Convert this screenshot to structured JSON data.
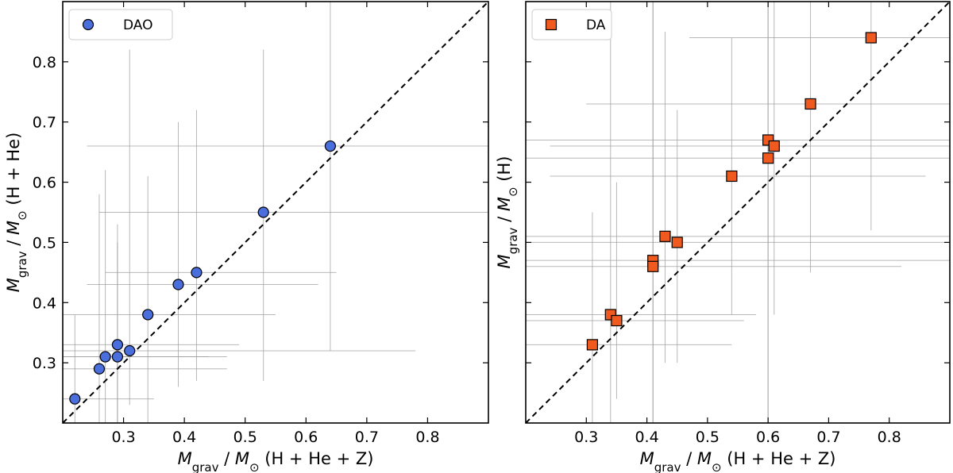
{
  "chart_data": [
    {
      "type": "scatter",
      "panel": "left",
      "xlabel": "M_grav / M_⊙ (H + He + Z)",
      "ylabel": "M_grav / M_⊙ (H + He)",
      "xlim": [
        0.2,
        0.9
      ],
      "ylim": [
        0.2,
        0.9
      ],
      "x_ticks": [
        0.3,
        0.4,
        0.5,
        0.6,
        0.7,
        0.8
      ],
      "y_ticks": [
        0.3,
        0.4,
        0.5,
        0.6,
        0.7,
        0.8
      ],
      "y_tick_labels_visible": true,
      "diagonal": "y = x (dashed)",
      "legend": {
        "label": "DAO",
        "position": "top-left"
      },
      "marker": "circle",
      "color": "#4a6fdc",
      "points": [
        {
          "x": 0.22,
          "y": 0.24,
          "xerr": [
            0.16,
            0.16
          ],
          "yerr": [
            0.16,
            0.16
          ]
        },
        {
          "x": 0.26,
          "y": 0.29,
          "xerr": [
            0.0,
            0.0
          ],
          "yerr": [
            0.0,
            0.29
          ]
        },
        {
          "x": 0.27,
          "y": 0.31,
          "xerr": [
            0.0,
            0.0
          ],
          "yerr": [
            0.0,
            0.31
          ]
        },
        {
          "x": 0.29,
          "y": 0.33,
          "xerr": [
            0.0,
            0.0
          ],
          "yerr": [
            0.0,
            0.2
          ]
        },
        {
          "x": 0.29,
          "y": 0.31,
          "xerr": [
            0.0,
            0.0
          ],
          "yerr": [
            0.0,
            0.22
          ]
        },
        {
          "x": 0.31,
          "y": 0.32,
          "xerr": [
            0.0,
            0.0
          ],
          "yerr": [
            0.0,
            0.5
          ]
        },
        {
          "x": 0.34,
          "y": 0.38,
          "xerr": [
            0.0,
            0.0
          ],
          "yerr": [
            0.0,
            0.23
          ]
        },
        {
          "x": 0.39,
          "y": 0.43,
          "xerr": [
            0.0,
            0.0
          ],
          "yerr": [
            0.0,
            0.27
          ]
        },
        {
          "x": 0.42,
          "y": 0.45,
          "xerr": [
            0.0,
            0.0
          ],
          "yerr": [
            0.0,
            0.27
          ]
        },
        {
          "x": 0.53,
          "y": 0.55,
          "xerr": [
            0.0,
            0.0
          ],
          "yerr": [
            0.0,
            0.0
          ]
        },
        {
          "x": 0.64,
          "y": 0.66,
          "xerr": [
            0.0,
            0.0
          ],
          "yerr": [
            0.0,
            0.0
          ]
        }
      ],
      "vlines": [
        {
          "x": 0.22,
          "y0": 0.2,
          "y1": 0.38
        },
        {
          "x": 0.26,
          "y0": 0.2,
          "y1": 0.58
        },
        {
          "x": 0.27,
          "y0": 0.2,
          "y1": 0.62
        },
        {
          "x": 0.29,
          "y0": 0.2,
          "y1": 0.53
        },
        {
          "x": 0.29,
          "y0": 0.2,
          "y1": 0.5
        },
        {
          "x": 0.31,
          "y0": 0.23,
          "y1": 0.82
        },
        {
          "x": 0.34,
          "y0": 0.2,
          "y1": 0.61
        },
        {
          "x": 0.39,
          "y0": 0.26,
          "y1": 0.7
        },
        {
          "x": 0.42,
          "y0": 0.27,
          "y1": 0.72
        },
        {
          "x": 0.53,
          "y0": 0.27,
          "y1": 0.82
        },
        {
          "x": 0.64,
          "y0": 0.32,
          "y1": 0.9
        }
      ],
      "hlines": [
        {
          "y": 0.24,
          "x0": 0.2,
          "x1": 0.35
        },
        {
          "y": 0.29,
          "x0": 0.2,
          "x1": 0.47
        },
        {
          "y": 0.31,
          "x0": 0.2,
          "x1": 0.44
        },
        {
          "y": 0.33,
          "x0": 0.2,
          "x1": 0.49
        },
        {
          "y": 0.31,
          "x0": 0.2,
          "x1": 0.47
        },
        {
          "y": 0.32,
          "x0": 0.2,
          "x1": 0.78
        },
        {
          "y": 0.38,
          "x0": 0.2,
          "x1": 0.55
        },
        {
          "y": 0.43,
          "x0": 0.24,
          "x1": 0.62
        },
        {
          "y": 0.45,
          "x0": 0.27,
          "x1": 0.65
        },
        {
          "y": 0.55,
          "x0": 0.26,
          "x1": 0.9
        },
        {
          "y": 0.66,
          "x0": 0.24,
          "x1": 0.9
        }
      ]
    },
    {
      "type": "scatter",
      "panel": "right",
      "xlabel": "M_grav / M_⊙ (H + He + Z)",
      "ylabel": "M_grav / M_⊙ (H)",
      "xlim": [
        0.2,
        0.9
      ],
      "ylim": [
        0.2,
        0.9
      ],
      "x_ticks": [
        0.3,
        0.4,
        0.5,
        0.6,
        0.7,
        0.8
      ],
      "y_ticks": [
        0.3,
        0.4,
        0.5,
        0.6,
        0.7,
        0.8
      ],
      "y_tick_labels_visible": false,
      "diagonal": "y = x (dashed)",
      "legend": {
        "label": "DA",
        "position": "top-left"
      },
      "marker": "square",
      "color": "#f05a1e",
      "points": [
        {
          "x": 0.31,
          "y": 0.33
        },
        {
          "x": 0.34,
          "y": 0.38
        },
        {
          "x": 0.35,
          "y": 0.37
        },
        {
          "x": 0.41,
          "y": 0.47
        },
        {
          "x": 0.41,
          "y": 0.46
        },
        {
          "x": 0.43,
          "y": 0.51
        },
        {
          "x": 0.45,
          "y": 0.5
        },
        {
          "x": 0.54,
          "y": 0.61
        },
        {
          "x": 0.6,
          "y": 0.67
        },
        {
          "x": 0.61,
          "y": 0.66
        },
        {
          "x": 0.6,
          "y": 0.64
        },
        {
          "x": 0.67,
          "y": 0.73
        },
        {
          "x": 0.77,
          "y": 0.84
        }
      ],
      "vlines": [
        {
          "x": 0.31,
          "y0": 0.2,
          "y1": 0.55
        },
        {
          "x": 0.34,
          "y0": 0.2,
          "y1": 0.9
        },
        {
          "x": 0.35,
          "y0": 0.24,
          "y1": 0.6
        },
        {
          "x": 0.41,
          "y0": 0.2,
          "y1": 0.9
        },
        {
          "x": 0.41,
          "y0": 0.2,
          "y1": 0.9
        },
        {
          "x": 0.43,
          "y0": 0.3,
          "y1": 0.85
        },
        {
          "x": 0.45,
          "y0": 0.3,
          "y1": 0.72
        },
        {
          "x": 0.54,
          "y0": 0.38,
          "y1": 0.84
        },
        {
          "x": 0.6,
          "y0": 0.2,
          "y1": 0.9
        },
        {
          "x": 0.61,
          "y0": 0.38,
          "y1": 0.9
        },
        {
          "x": 0.6,
          "y0": 0.2,
          "y1": 0.9
        },
        {
          "x": 0.67,
          "y0": 0.45,
          "y1": 0.9
        },
        {
          "x": 0.77,
          "y0": 0.52,
          "y1": 0.9
        }
      ],
      "hlines": [
        {
          "y": 0.33,
          "x0": 0.2,
          "x1": 0.54
        },
        {
          "y": 0.38,
          "x0": 0.2,
          "x1": 0.58
        },
        {
          "y": 0.37,
          "x0": 0.2,
          "x1": 0.56
        },
        {
          "y": 0.47,
          "x0": 0.2,
          "x1": 0.9
        },
        {
          "y": 0.46,
          "x0": 0.2,
          "x1": 0.82
        },
        {
          "y": 0.51,
          "x0": 0.2,
          "x1": 0.9
        },
        {
          "y": 0.5,
          "x0": 0.2,
          "x1": 0.9
        },
        {
          "y": 0.61,
          "x0": 0.24,
          "x1": 0.86
        },
        {
          "y": 0.67,
          "x0": 0.2,
          "x1": 0.9
        },
        {
          "y": 0.66,
          "x0": 0.24,
          "x1": 0.9
        },
        {
          "y": 0.64,
          "x0": 0.2,
          "x1": 0.9
        },
        {
          "y": 0.73,
          "x0": 0.3,
          "x1": 0.9
        },
        {
          "y": 0.84,
          "x0": 0.47,
          "x1": 0.9
        }
      ]
    }
  ]
}
